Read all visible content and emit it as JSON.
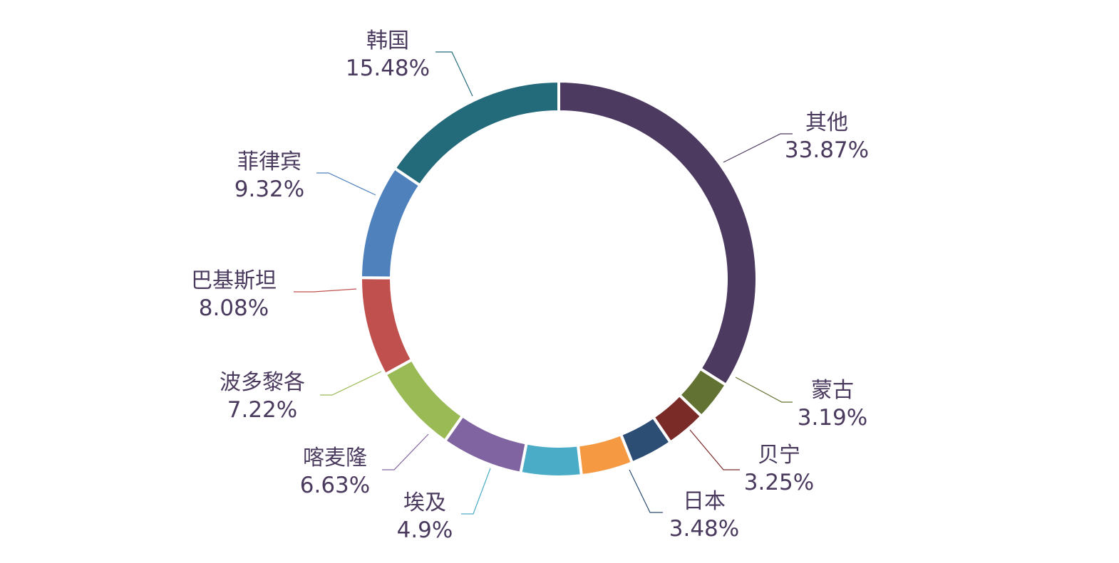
{
  "chart_data": {
    "type": "pie",
    "variant": "donut",
    "legend": "none",
    "slices": [
      {
        "label": "其他",
        "value": 33.87,
        "display": "33.87%",
        "color": "#4d3a61"
      },
      {
        "label": "蒙古",
        "value": 3.19,
        "display": "3.19%",
        "color": "#627232"
      },
      {
        "label": "贝宁",
        "value": 3.25,
        "display": "3.25%",
        "color": "#7a2a27"
      },
      {
        "label": "日本",
        "value": 3.48,
        "display": "3.48%",
        "color": "#2c4d74"
      },
      {
        "label": "",
        "value": 4.2,
        "display": "",
        "color": "#f59a43"
      },
      {
        "label": "埃及",
        "value": 4.9,
        "display": "4.9%",
        "color": "#4aacc6"
      },
      {
        "label": "喀麦隆",
        "value": 6.63,
        "display": "6.63%",
        "color": "#8064a1"
      },
      {
        "label": "波多黎各",
        "value": 7.22,
        "display": "7.22%",
        "color": "#9aba55"
      },
      {
        "label": "巴基斯坦",
        "value": 8.08,
        "display": "8.08%",
        "color": "#bf504d"
      },
      {
        "label": "菲律宾",
        "value": 9.32,
        "display": "9.32%",
        "color": "#4f81bc"
      },
      {
        "label": "韩国",
        "value": 15.48,
        "display": "15.48%",
        "color": "#236a7b"
      }
    ]
  }
}
